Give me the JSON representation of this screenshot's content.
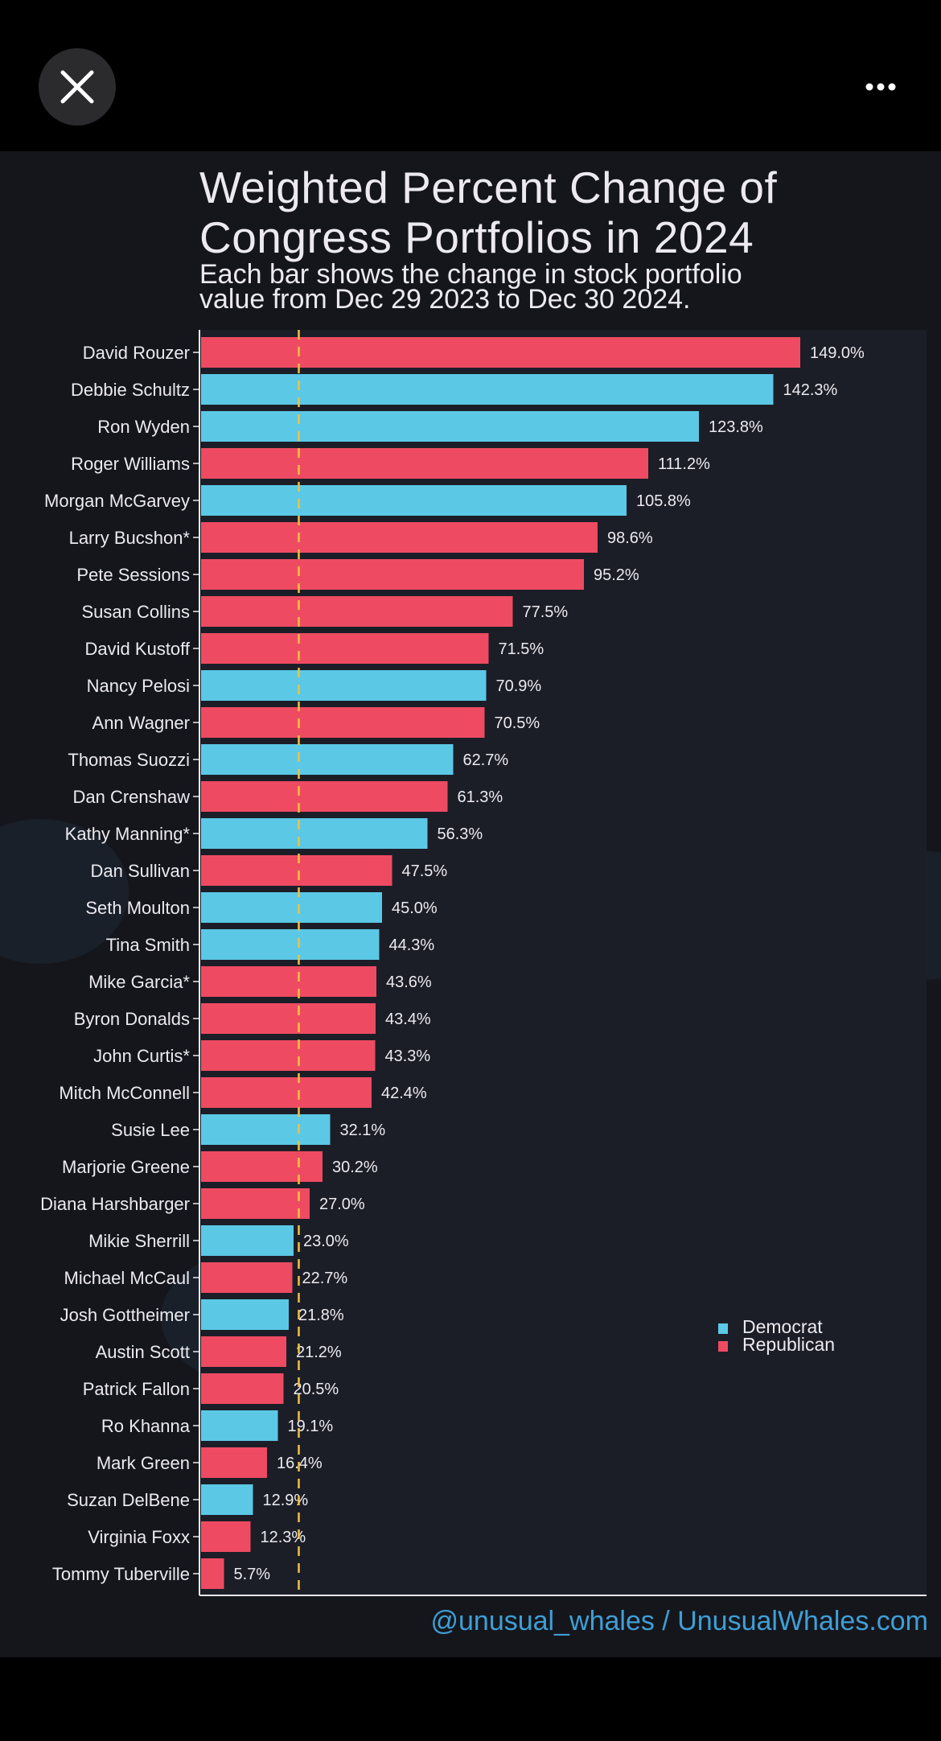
{
  "viewer": {
    "close_icon": "close-icon",
    "more_icon": "more-horizontal-icon"
  },
  "colors": {
    "democrat": "#5bc8e6",
    "republican": "#ee4b62",
    "reference_line": "#f2c23a",
    "credit": "#3f9fd6"
  },
  "credit": "@unusual_whales / UnusualWhales.com",
  "chart_data": {
    "type": "bar",
    "orientation": "horizontal",
    "title_lines": [
      "Weighted Percent Change of",
      "Congress Portfolios in 2024"
    ],
    "subtitle_lines": [
      "Each bar shows the change in stock portfolio",
      "value from Dec 29 2023 to Dec 30 2024."
    ],
    "xlabel": "",
    "ylabel": "",
    "xlim": [
      0,
      178
    ],
    "reference_line": {
      "value": 24.3,
      "style": "dashed"
    },
    "legend": {
      "position": "bottom-right",
      "entries": [
        {
          "label": "Democrat",
          "party": "D"
        },
        {
          "label": "Republican",
          "party": "R"
        }
      ]
    },
    "bars": [
      {
        "name": "David Rouzer",
        "value": 149.0,
        "party": "R",
        "label": "149.0%"
      },
      {
        "name": "Debbie Schultz",
        "value": 142.3,
        "party": "D",
        "label": "142.3%"
      },
      {
        "name": "Ron Wyden",
        "value": 123.8,
        "party": "D",
        "label": "123.8%"
      },
      {
        "name": "Roger Williams",
        "value": 111.2,
        "party": "R",
        "label": "111.2%"
      },
      {
        "name": "Morgan McGarvey",
        "value": 105.8,
        "party": "D",
        "label": "105.8%"
      },
      {
        "name": "Larry Bucshon*",
        "value": 98.6,
        "party": "R",
        "label": "98.6%"
      },
      {
        "name": "Pete Sessions",
        "value": 95.2,
        "party": "R",
        "label": "95.2%"
      },
      {
        "name": "Susan Collins",
        "value": 77.5,
        "party": "R",
        "label": "77.5%"
      },
      {
        "name": "David Kustoff",
        "value": 71.5,
        "party": "R",
        "label": "71.5%"
      },
      {
        "name": "Nancy Pelosi",
        "value": 70.9,
        "party": "D",
        "label": "70.9%"
      },
      {
        "name": "Ann Wagner",
        "value": 70.5,
        "party": "R",
        "label": "70.5%"
      },
      {
        "name": "Thomas Suozzi",
        "value": 62.7,
        "party": "D",
        "label": "62.7%"
      },
      {
        "name": "Dan Crenshaw",
        "value": 61.3,
        "party": "R",
        "label": "61.3%"
      },
      {
        "name": "Kathy Manning*",
        "value": 56.3,
        "party": "D",
        "label": "56.3%"
      },
      {
        "name": "Dan Sullivan",
        "value": 47.5,
        "party": "R",
        "label": "47.5%"
      },
      {
        "name": "Seth Moulton",
        "value": 45.0,
        "party": "D",
        "label": "45.0%"
      },
      {
        "name": "Tina Smith",
        "value": 44.3,
        "party": "D",
        "label": "44.3%"
      },
      {
        "name": "Mike Garcia*",
        "value": 43.6,
        "party": "R",
        "label": "43.6%"
      },
      {
        "name": "Byron Donalds",
        "value": 43.4,
        "party": "R",
        "label": "43.4%"
      },
      {
        "name": "John Curtis*",
        "value": 43.3,
        "party": "R",
        "label": "43.3%"
      },
      {
        "name": "Mitch McConnell",
        "value": 42.4,
        "party": "R",
        "label": "42.4%"
      },
      {
        "name": "Susie Lee",
        "value": 32.1,
        "party": "D",
        "label": "32.1%"
      },
      {
        "name": "Marjorie Greene",
        "value": 30.2,
        "party": "R",
        "label": "30.2%"
      },
      {
        "name": "Diana Harshbarger",
        "value": 27.0,
        "party": "R",
        "label": "27.0%"
      },
      {
        "name": "Mikie Sherrill",
        "value": 23.0,
        "party": "D",
        "label": "23.0%"
      },
      {
        "name": "Michael McCaul",
        "value": 22.7,
        "party": "R",
        "label": "22.7%"
      },
      {
        "name": "Josh Gottheimer",
        "value": 21.8,
        "party": "D",
        "label": "21.8%"
      },
      {
        "name": "Austin Scott",
        "value": 21.2,
        "party": "R",
        "label": "21.2%"
      },
      {
        "name": "Patrick Fallon",
        "value": 20.5,
        "party": "R",
        "label": "20.5%"
      },
      {
        "name": "Ro Khanna",
        "value": 19.1,
        "party": "D",
        "label": "19.1%"
      },
      {
        "name": "Mark Green",
        "value": 16.4,
        "party": "R",
        "label": "16.4%"
      },
      {
        "name": "Suzan DelBene",
        "value": 12.9,
        "party": "D",
        "label": "12.9%"
      },
      {
        "name": "Virginia Foxx",
        "value": 12.3,
        "party": "R",
        "label": "12.3%"
      },
      {
        "name": "Tommy Tuberville",
        "value": 5.7,
        "party": "R",
        "label": "5.7%"
      }
    ]
  }
}
